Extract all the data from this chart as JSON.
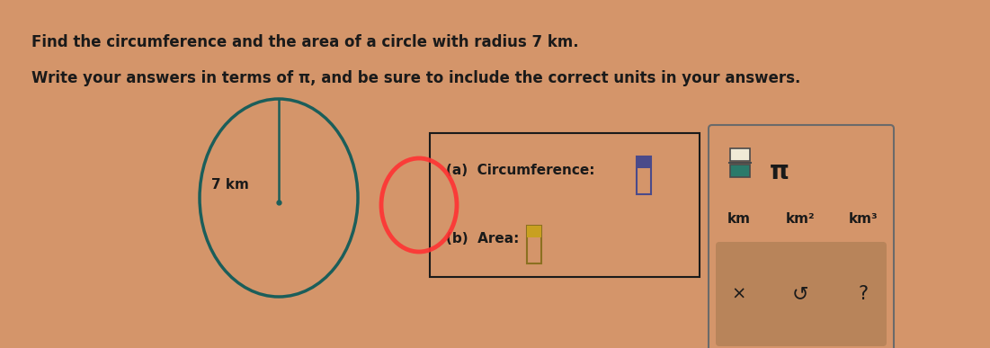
{
  "bg_color": "#D4956A",
  "text_color": "#1A1A1A",
  "title_line1": "Find the circumference and the area of a circle with radius 7 km.",
  "title_line2": "Write your answers in terms of π, and be sure to include the correct units in your answers.",
  "circle_color": "#1B5E5A",
  "radius_label": "7 km",
  "circ_label": "(a)  Circumference:",
  "area_label": "(b)  Area:",
  "pi_symbol": "π",
  "unit_km": "km",
  "unit_km2": "km²",
  "unit_km3": "km³",
  "cross_symbol": "×",
  "undo_symbol": "↺",
  "question_symbol": "?",
  "answer_box_color": "#D4956A",
  "answer_box_border": "#1A1A1A",
  "panel_color": "#D4956A",
  "panel_border": "#6A6A6A",
  "bottom_strip_color": "#B8845A",
  "frac_top_color": "#F0EAD6",
  "frac_bot_color": "#2A7A6A",
  "inp1_border": "#4A4A8A",
  "inp1_top": "#4A4A8A",
  "inp1_body": "#D4956A",
  "inp2_border": "#8B7020",
  "inp2_top": "#C8A020",
  "inp2_body": "#D4956A",
  "red_circle_color": "#FF3333"
}
